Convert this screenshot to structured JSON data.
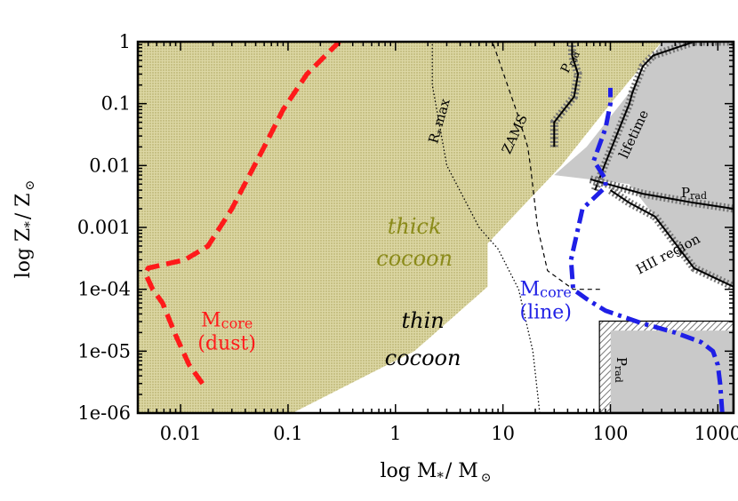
{
  "chart_data": {
    "type": "line",
    "xlabel": "log M_*/M_⊙",
    "ylabel": "log Z_*/Z_⊙",
    "xlabel_parts": {
      "main": "log M",
      "sub": "*",
      "mid": "/ M",
      "sun": "⊙"
    },
    "ylabel_parts": {
      "main": "log Z",
      "sub": "*",
      "mid": "/ Z",
      "sun": "⊙"
    },
    "x_scale": "log",
    "y_scale": "log",
    "xlim": [
      0.004,
      1400
    ],
    "ylim": [
      1e-06,
      1
    ],
    "x_ticks": [
      {
        "value": 0.01,
        "label": "0.01"
      },
      {
        "value": 0.1,
        "label": "0.1"
      },
      {
        "value": 1,
        "label": "1"
      },
      {
        "value": 10,
        "label": "10"
      },
      {
        "value": 100,
        "label": "100"
      },
      {
        "value": 1000,
        "label": "1000"
      }
    ],
    "y_ticks": [
      {
        "value": 1,
        "label": "1"
      },
      {
        "value": 0.1,
        "label": "0.1"
      },
      {
        "value": 0.01,
        "label": "0.01"
      },
      {
        "value": 0.001,
        "label": "0.001"
      },
      {
        "value": 0.0001,
        "label": "1e-04"
      },
      {
        "value": 1e-05,
        "label": "1e-05"
      },
      {
        "value": 1e-06,
        "label": "1e-06"
      }
    ],
    "colors": {
      "cocoon_fill": "#dcd7a4",
      "cocoon_dot": "#a8a056",
      "gray_fill": "#c9c9c9",
      "hatch": "#777777",
      "dust_line": "#ff1a1a",
      "line_line": "#1f1fe6",
      "thick_label": "#8b8b1a"
    },
    "regions": [
      {
        "name": "thick cocoon",
        "points": [
          [
            0.004,
            1e-06
          ],
          [
            0.11,
            1e-06
          ],
          [
            1.5,
            1e-05
          ],
          [
            7.2,
            0.00011
          ],
          [
            7.2,
            0.00055
          ],
          [
            35,
            0.01
          ],
          [
            100,
            0.1
          ],
          [
            300,
            1
          ],
          [
            0.004,
            1
          ]
        ]
      },
      {
        "name": "excluded upper right",
        "points": [
          [
            55,
            1
          ],
          [
            1400,
            1
          ],
          [
            1400,
            0.00011
          ],
          [
            600,
            0.00022
          ],
          [
            260,
            0.0015
          ],
          [
            150,
            0.005
          ],
          [
            30,
            0.007
          ],
          [
            60,
            0.02
          ],
          [
            150,
            0.15
          ],
          [
            300,
            1
          ]
        ]
      },
      {
        "name": "excluded lower right",
        "points": [
          [
            80,
            1e-06
          ],
          [
            1400,
            1e-06
          ],
          [
            1400,
            3e-05
          ],
          [
            80,
            3e-05
          ]
        ]
      }
    ],
    "series": [
      {
        "name": "Mcore (dust)",
        "style": "dashed",
        "x": [
          0.016,
          0.012,
          0.009,
          0.0068,
          0.0055,
          0.0047,
          0.005,
          0.011,
          0.018,
          0.03,
          0.06,
          0.09,
          0.15,
          0.3
        ],
        "y": [
          3e-06,
          6e-06,
          1.8e-05,
          6e-05,
          0.0001,
          0.00018,
          0.00022,
          0.0003,
          0.0005,
          0.002,
          0.02,
          0.08,
          0.3,
          1
        ]
      },
      {
        "name": "Mcore (line)",
        "style": "dashdot",
        "x": [
          1100,
          1050,
          1000,
          900,
          700,
          400,
          200,
          90,
          60,
          45,
          43,
          55,
          90,
          90,
          70,
          90,
          100,
          100
        ],
        "y": [
          1e-06,
          3e-06,
          6e-06,
          1e-05,
          1.4e-05,
          2e-05,
          2.8e-05,
          4.5e-05,
          7e-05,
          0.0001,
          0.0003,
          0.002,
          0.0045,
          0.006,
          0.012,
          0.04,
          0.1,
          0.18
        ]
      },
      {
        "name": "R*max",
        "style": "dotted",
        "x": [
          22,
          19,
          14,
          9,
          6,
          3,
          2.2,
          2.2
        ],
        "y": [
          1e-06,
          1e-05,
          0.0001,
          0.00045,
          0.001,
          0.01,
          0.2,
          1
        ]
      },
      {
        "name": "ZAMS",
        "style": "dashed-thin",
        "x": [
          80,
          45,
          26,
          21,
          18,
          17,
          14,
          8
        ],
        "y": [
          0.0001,
          0.0001,
          0.0002,
          0.001,
          0.01,
          0.02,
          0.06,
          1
        ]
      },
      {
        "name": "Prad (upper)",
        "style": "solid",
        "x": [
          30,
          30,
          46,
          50,
          44,
          44
        ],
        "y": [
          0.02,
          0.05,
          0.13,
          0.3,
          0.6,
          1
        ]
      },
      {
        "name": "lifetime",
        "style": "solid",
        "x": [
          72,
          88,
          150,
          160,
          180,
          200,
          250,
          600,
          1400
        ],
        "y": [
          0.004,
          0.01,
          0.1,
          0.15,
          0.25,
          0.4,
          0.6,
          1,
          1
        ]
      },
      {
        "name": "Prad (middle)",
        "style": "solid",
        "x": [
          65,
          200,
          600,
          1400
        ],
        "y": [
          0.006,
          0.0035,
          0.0025,
          0.002
        ]
      },
      {
        "name": "HII region",
        "style": "solid",
        "x": [
          100,
          150,
          260,
          600,
          1400
        ],
        "y": [
          0.004,
          0.0025,
          0.0015,
          0.00022,
          0.00011
        ]
      }
    ],
    "annotations": [
      {
        "text": "thick",
        "x": 1.5,
        "y": 0.0008
      },
      {
        "text": "cocoon",
        "x": 1.5,
        "y": 0.00024
      },
      {
        "text": "thin",
        "x": 1.8,
        "y": 2.4e-05
      },
      {
        "text": "cocoon",
        "x": 1.8,
        "y": 6e-06
      },
      {
        "text": "M",
        "sub": "core",
        "line2": "(dust)",
        "x": 0.027,
        "y": 2.5e-05
      },
      {
        "text": "M",
        "sub": "core",
        "line2": "(line)",
        "x": 25,
        "y": 8e-05
      },
      {
        "text": "R",
        "sub": "*",
        "tail": "max",
        "x": 2.8,
        "y": 0.05,
        "angle": 74
      },
      {
        "text": "ZAMS",
        "x": 14,
        "y": 0.03,
        "angle": 65
      },
      {
        "text": "P",
        "sub": "rad",
        "x": 45,
        "y": 0.45,
        "angle": 64
      },
      {
        "text": "lifetime",
        "x": 180,
        "y": 0.03,
        "angle": 65
      },
      {
        "text": "P",
        "sub": "rad",
        "x": 600,
        "y": 0.0031,
        "angle": 0
      },
      {
        "text": "HII region",
        "x": 360,
        "y": 0.00032,
        "angle": 28
      },
      {
        "text": "P",
        "sub": "rad",
        "x": 115,
        "y": 5e-06,
        "angle": -90
      }
    ]
  }
}
